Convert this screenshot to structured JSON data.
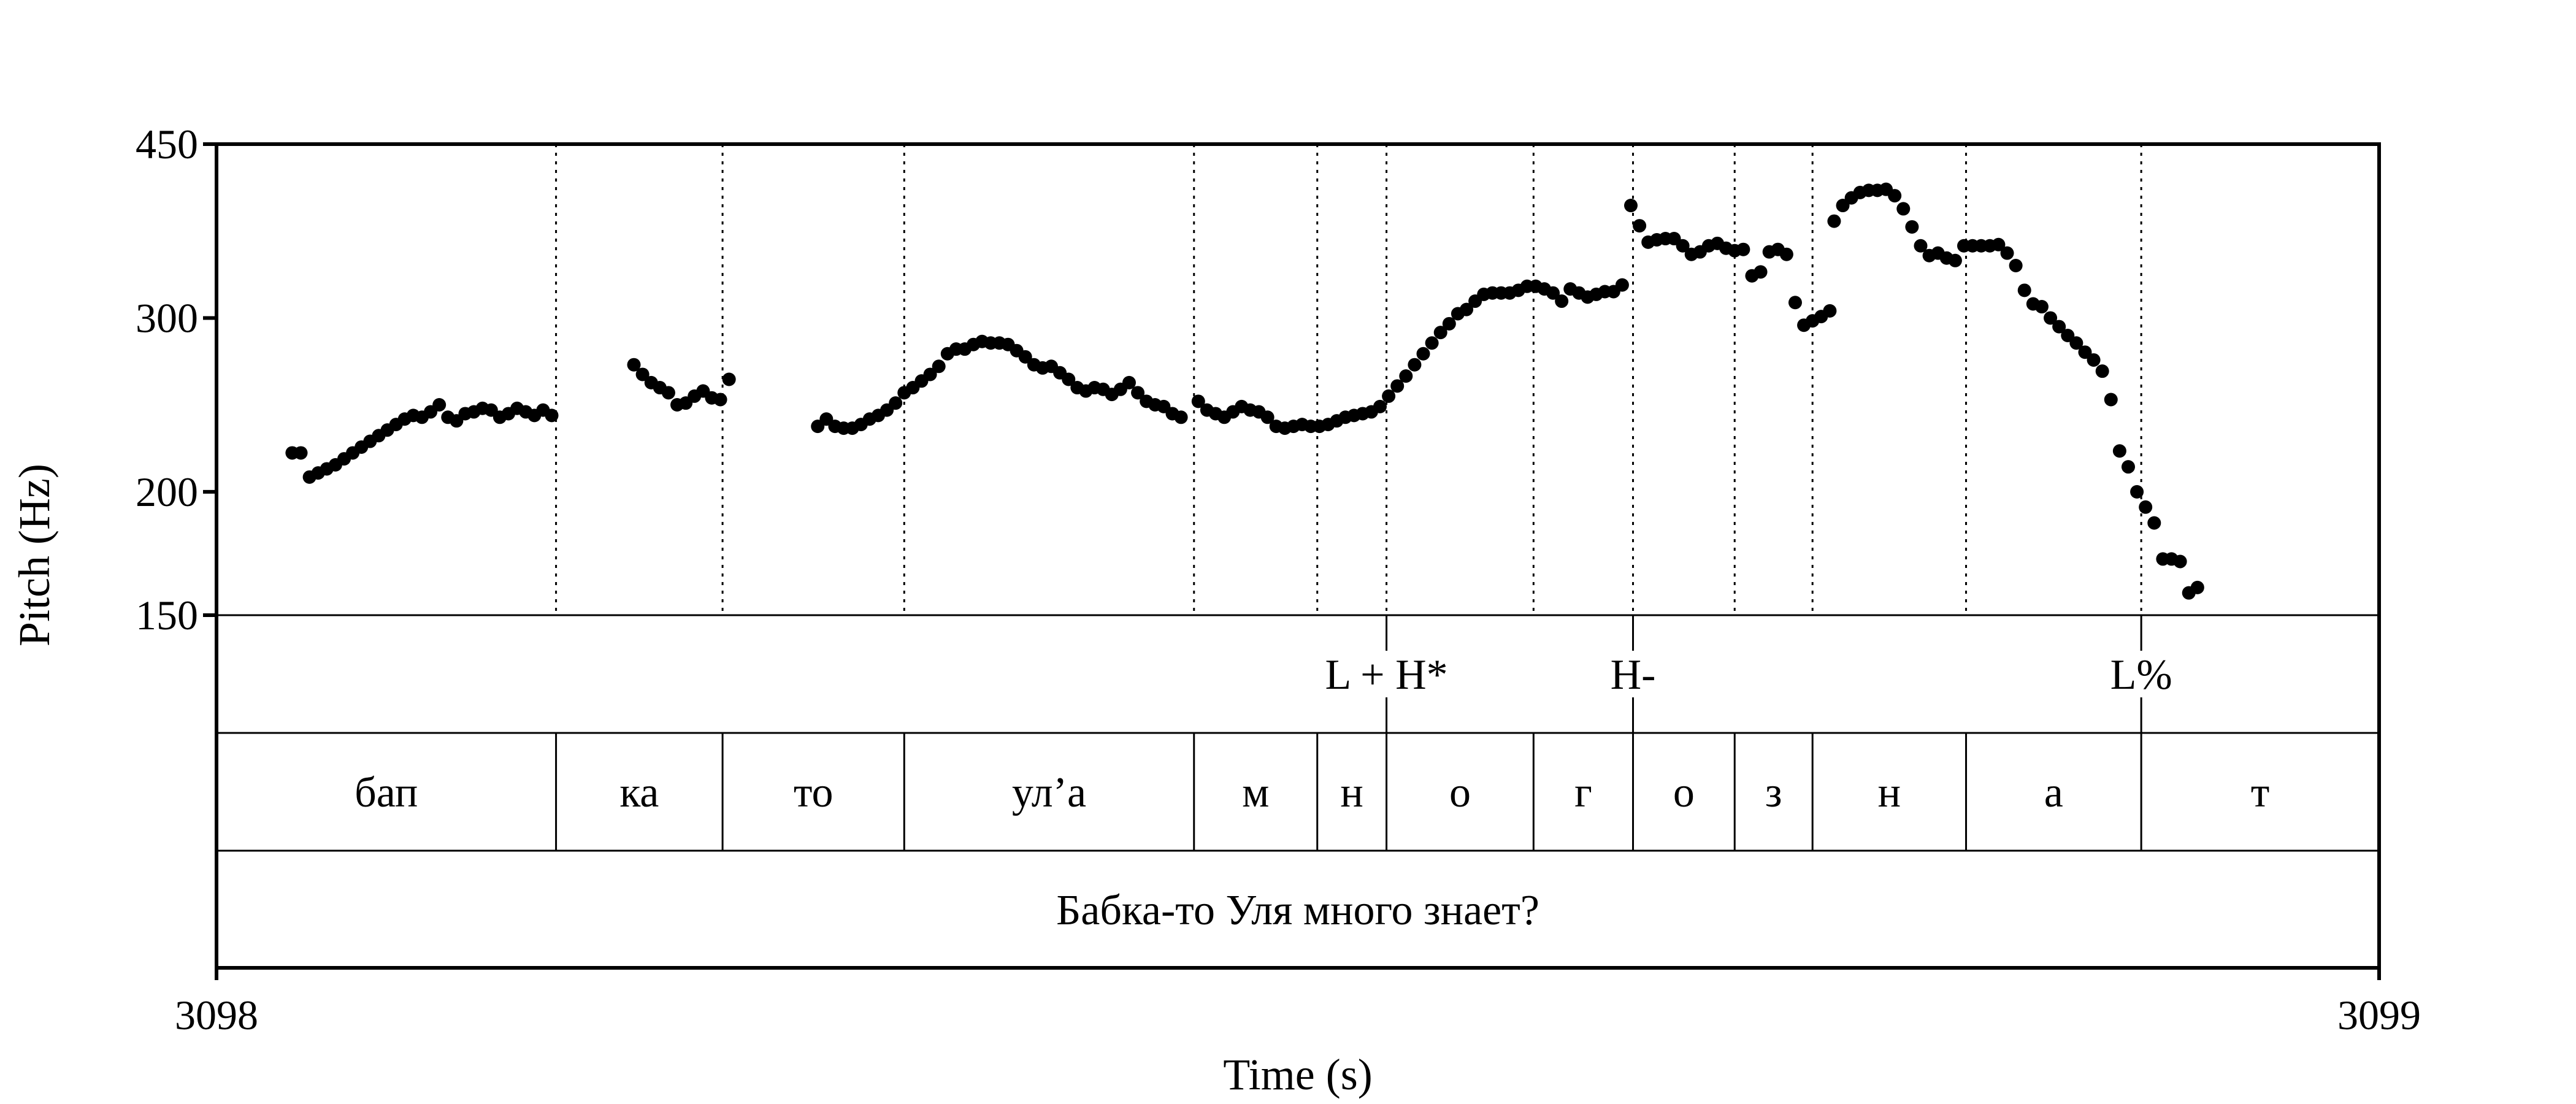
{
  "chart_data": {
    "type": "scatter",
    "title": "",
    "xlabel": "Time (s)",
    "ylabel": "Pitch (Hz)",
    "xlim": [
      3098,
      3099
    ],
    "ylim": [
      150,
      450
    ],
    "y_scale": "log",
    "x_ticks": [
      "3098",
      "3099"
    ],
    "y_ticks": [
      {
        "value": 450,
        "label": "450"
      },
      {
        "value": 300,
        "label": "300"
      },
      {
        "value": 200,
        "label": "200"
      },
      {
        "value": 150,
        "label": "150"
      }
    ],
    "grid": false,
    "boundaries": [
      3098.157,
      3098.234,
      3098.318,
      3098.452,
      3098.509,
      3098.541,
      3098.609,
      3098.655,
      3098.702,
      3098.738,
      3098.809,
      3098.89
    ],
    "tones": [
      {
        "time": 3098.541,
        "label": "L + H*"
      },
      {
        "time": 3098.655,
        "label": "H-"
      },
      {
        "time": 3098.89,
        "label": "L%"
      }
    ],
    "segments": [
      {
        "start": 3098.0,
        "end": 3098.157,
        "label": "бап"
      },
      {
        "start": 3098.157,
        "end": 3098.234,
        "label": "ка"
      },
      {
        "start": 3098.234,
        "end": 3098.318,
        "label": "то"
      },
      {
        "start": 3098.318,
        "end": 3098.452,
        "label": "ул’а"
      },
      {
        "start": 3098.452,
        "end": 3098.509,
        "label": "м"
      },
      {
        "start": 3098.509,
        "end": 3098.541,
        "label": "н"
      },
      {
        "start": 3098.541,
        "end": 3098.609,
        "label": "о"
      },
      {
        "start": 3098.609,
        "end": 3098.655,
        "label": "г"
      },
      {
        "start": 3098.655,
        "end": 3098.702,
        "label": "о"
      },
      {
        "start": 3098.702,
        "end": 3098.738,
        "label": "з"
      },
      {
        "start": 3098.738,
        "end": 3098.809,
        "label": "н"
      },
      {
        "start": 3098.809,
        "end": 3098.89,
        "label": "а"
      },
      {
        "start": 3098.89,
        "end": 3099.0,
        "label": "т"
      }
    ],
    "sentence": {
      "start": 3098.0,
      "end": 3099.0,
      "label": "Бабка-то Уля много знает?"
    },
    "series": [
      {
        "points": [
          [
            3098.035,
            219
          ],
          [
            3098.039,
            219
          ],
          [
            3098.043,
            207
          ],
          [
            3098.047,
            209
          ],
          [
            3098.051,
            211
          ],
          [
            3098.055,
            213
          ],
          [
            3098.059,
            216
          ],
          [
            3098.063,
            219
          ],
          [
            3098.067,
            222
          ],
          [
            3098.071,
            225
          ],
          [
            3098.075,
            228
          ],
          [
            3098.079,
            231
          ],
          [
            3098.083,
            234
          ],
          [
            3098.087,
            237
          ],
          [
            3098.091,
            239
          ],
          [
            3098.095,
            238
          ],
          [
            3098.099,
            241
          ],
          [
            3098.103,
            245
          ],
          [
            3098.107,
            238
          ],
          [
            3098.111,
            236
          ],
          [
            3098.115,
            240
          ],
          [
            3098.119,
            241
          ],
          [
            3098.123,
            243
          ],
          [
            3098.127,
            242
          ],
          [
            3098.131,
            238
          ],
          [
            3098.135,
            240
          ],
          [
            3098.139,
            243
          ],
          [
            3098.143,
            241
          ],
          [
            3098.147,
            239
          ],
          [
            3098.151,
            242
          ],
          [
            3098.155,
            239
          ],
          [
            3098.193,
            269
          ],
          [
            3098.197,
            263
          ],
          [
            3098.201,
            258
          ],
          [
            3098.205,
            255
          ],
          [
            3098.209,
            252
          ],
          [
            3098.213,
            245
          ],
          [
            3098.217,
            246
          ],
          [
            3098.221,
            250
          ],
          [
            3098.225,
            253
          ],
          [
            3098.229,
            249
          ],
          [
            3098.233,
            248
          ],
          [
            3098.237,
            260
          ],
          [
            3098.278,
            233
          ],
          [
            3098.282,
            237
          ],
          [
            3098.286,
            233
          ],
          [
            3098.29,
            232
          ],
          [
            3098.294,
            232
          ],
          [
            3098.298,
            234
          ],
          [
            3098.302,
            237
          ],
          [
            3098.306,
            239
          ],
          [
            3098.31,
            242
          ],
          [
            3098.314,
            246
          ],
          [
            3098.318,
            252
          ],
          [
            3098.322,
            255
          ],
          [
            3098.326,
            259
          ],
          [
            3098.33,
            263
          ],
          [
            3098.334,
            268
          ],
          [
            3098.338,
            276
          ],
          [
            3098.342,
            279
          ],
          [
            3098.346,
            279
          ],
          [
            3098.35,
            282
          ],
          [
            3098.354,
            284
          ],
          [
            3098.358,
            283
          ],
          [
            3098.362,
            283
          ],
          [
            3098.366,
            282
          ],
          [
            3098.37,
            278
          ],
          [
            3098.374,
            274
          ],
          [
            3098.378,
            269
          ],
          [
            3098.382,
            267
          ],
          [
            3098.386,
            268
          ],
          [
            3098.39,
            264
          ],
          [
            3098.394,
            260
          ],
          [
            3098.398,
            255
          ],
          [
            3098.402,
            253
          ],
          [
            3098.406,
            255
          ],
          [
            3098.41,
            254
          ],
          [
            3098.414,
            251
          ],
          [
            3098.418,
            254
          ],
          [
            3098.422,
            258
          ],
          [
            3098.426,
            252
          ],
          [
            3098.43,
            247
          ],
          [
            3098.434,
            245
          ],
          [
            3098.438,
            244
          ],
          [
            3098.442,
            240
          ],
          [
            3098.446,
            238
          ],
          [
            3098.454,
            247
          ],
          [
            3098.458,
            242
          ],
          [
            3098.462,
            240
          ],
          [
            3098.466,
            238
          ],
          [
            3098.47,
            241
          ],
          [
            3098.474,
            244
          ],
          [
            3098.478,
            242
          ],
          [
            3098.482,
            241
          ],
          [
            3098.486,
            238
          ],
          [
            3098.49,
            233
          ],
          [
            3098.494,
            232
          ],
          [
            3098.498,
            233
          ],
          [
            3098.502,
            234
          ],
          [
            3098.506,
            233
          ],
          [
            3098.51,
            233
          ],
          [
            3098.514,
            234
          ],
          [
            3098.518,
            236
          ],
          [
            3098.522,
            238
          ],
          [
            3098.526,
            239
          ],
          [
            3098.53,
            240
          ],
          [
            3098.534,
            241
          ],
          [
            3098.538,
            244
          ],
          [
            3098.542,
            250
          ],
          [
            3098.546,
            256
          ],
          [
            3098.55,
            262
          ],
          [
            3098.554,
            269
          ],
          [
            3098.558,
            276
          ],
          [
            3098.562,
            283
          ],
          [
            3098.566,
            290
          ],
          [
            3098.57,
            296
          ],
          [
            3098.574,
            303
          ],
          [
            3098.578,
            306
          ],
          [
            3098.582,
            312
          ],
          [
            3098.586,
            317
          ],
          [
            3098.59,
            318
          ],
          [
            3098.594,
            318
          ],
          [
            3098.598,
            318
          ],
          [
            3098.602,
            320
          ],
          [
            3098.606,
            323
          ],
          [
            3098.61,
            323
          ],
          [
            3098.614,
            321
          ],
          [
            3098.618,
            318
          ],
          [
            3098.622,
            312
          ],
          [
            3098.626,
            321
          ],
          [
            3098.63,
            318
          ],
          [
            3098.634,
            315
          ],
          [
            3098.638,
            317
          ],
          [
            3098.642,
            319
          ],
          [
            3098.646,
            319
          ],
          [
            3098.65,
            324
          ],
          [
            3098.654,
            390
          ],
          [
            3098.658,
            372
          ],
          [
            3098.662,
            358
          ],
          [
            3098.666,
            360
          ],
          [
            3098.67,
            361
          ],
          [
            3098.674,
            361
          ],
          [
            3098.678,
            355
          ],
          [
            3098.682,
            348
          ],
          [
            3098.686,
            350
          ],
          [
            3098.69,
            355
          ],
          [
            3098.694,
            357
          ],
          [
            3098.698,
            353
          ],
          [
            3098.702,
            351
          ],
          [
            3098.706,
            352
          ],
          [
            3098.71,
            331
          ],
          [
            3098.714,
            334
          ],
          [
            3098.718,
            350
          ],
          [
            3098.722,
            352
          ],
          [
            3098.726,
            348
          ],
          [
            3098.73,
            311
          ],
          [
            3098.734,
            295
          ],
          [
            3098.738,
            298
          ],
          [
            3098.742,
            301
          ],
          [
            3098.746,
            305
          ],
          [
            3098.748,
            376
          ],
          [
            3098.752,
            390
          ],
          [
            3098.756,
            397
          ],
          [
            3098.76,
            402
          ],
          [
            3098.764,
            404
          ],
          [
            3098.768,
            404
          ],
          [
            3098.772,
            405
          ],
          [
            3098.776,
            399
          ],
          [
            3098.78,
            387
          ],
          [
            3098.784,
            371
          ],
          [
            3098.788,
            355
          ],
          [
            3098.792,
            347
          ],
          [
            3098.796,
            349
          ],
          [
            3098.8,
            345
          ],
          [
            3098.804,
            343
          ],
          [
            3098.808,
            355
          ],
          [
            3098.812,
            355
          ],
          [
            3098.816,
            355
          ],
          [
            3098.82,
            355
          ],
          [
            3098.824,
            356
          ],
          [
            3098.828,
            349
          ],
          [
            3098.832,
            339
          ],
          [
            3098.836,
            320
          ],
          [
            3098.84,
            310
          ],
          [
            3098.844,
            308
          ],
          [
            3098.848,
            300
          ],
          [
            3098.852,
            294
          ],
          [
            3098.856,
            288
          ],
          [
            3098.86,
            283
          ],
          [
            3098.864,
            277
          ],
          [
            3098.868,
            272
          ],
          [
            3098.872,
            265
          ],
          [
            3098.876,
            248
          ],
          [
            3098.88,
            220
          ],
          [
            3098.884,
            212
          ],
          [
            3098.888,
            200
          ],
          [
            3098.892,
            193
          ],
          [
            3098.896,
            186
          ],
          [
            3098.9,
            171
          ],
          [
            3098.904,
            171
          ],
          [
            3098.908,
            170
          ],
          [
            3098.912,
            158
          ],
          [
            3098.916,
            160
          ]
        ]
      }
    ]
  }
}
